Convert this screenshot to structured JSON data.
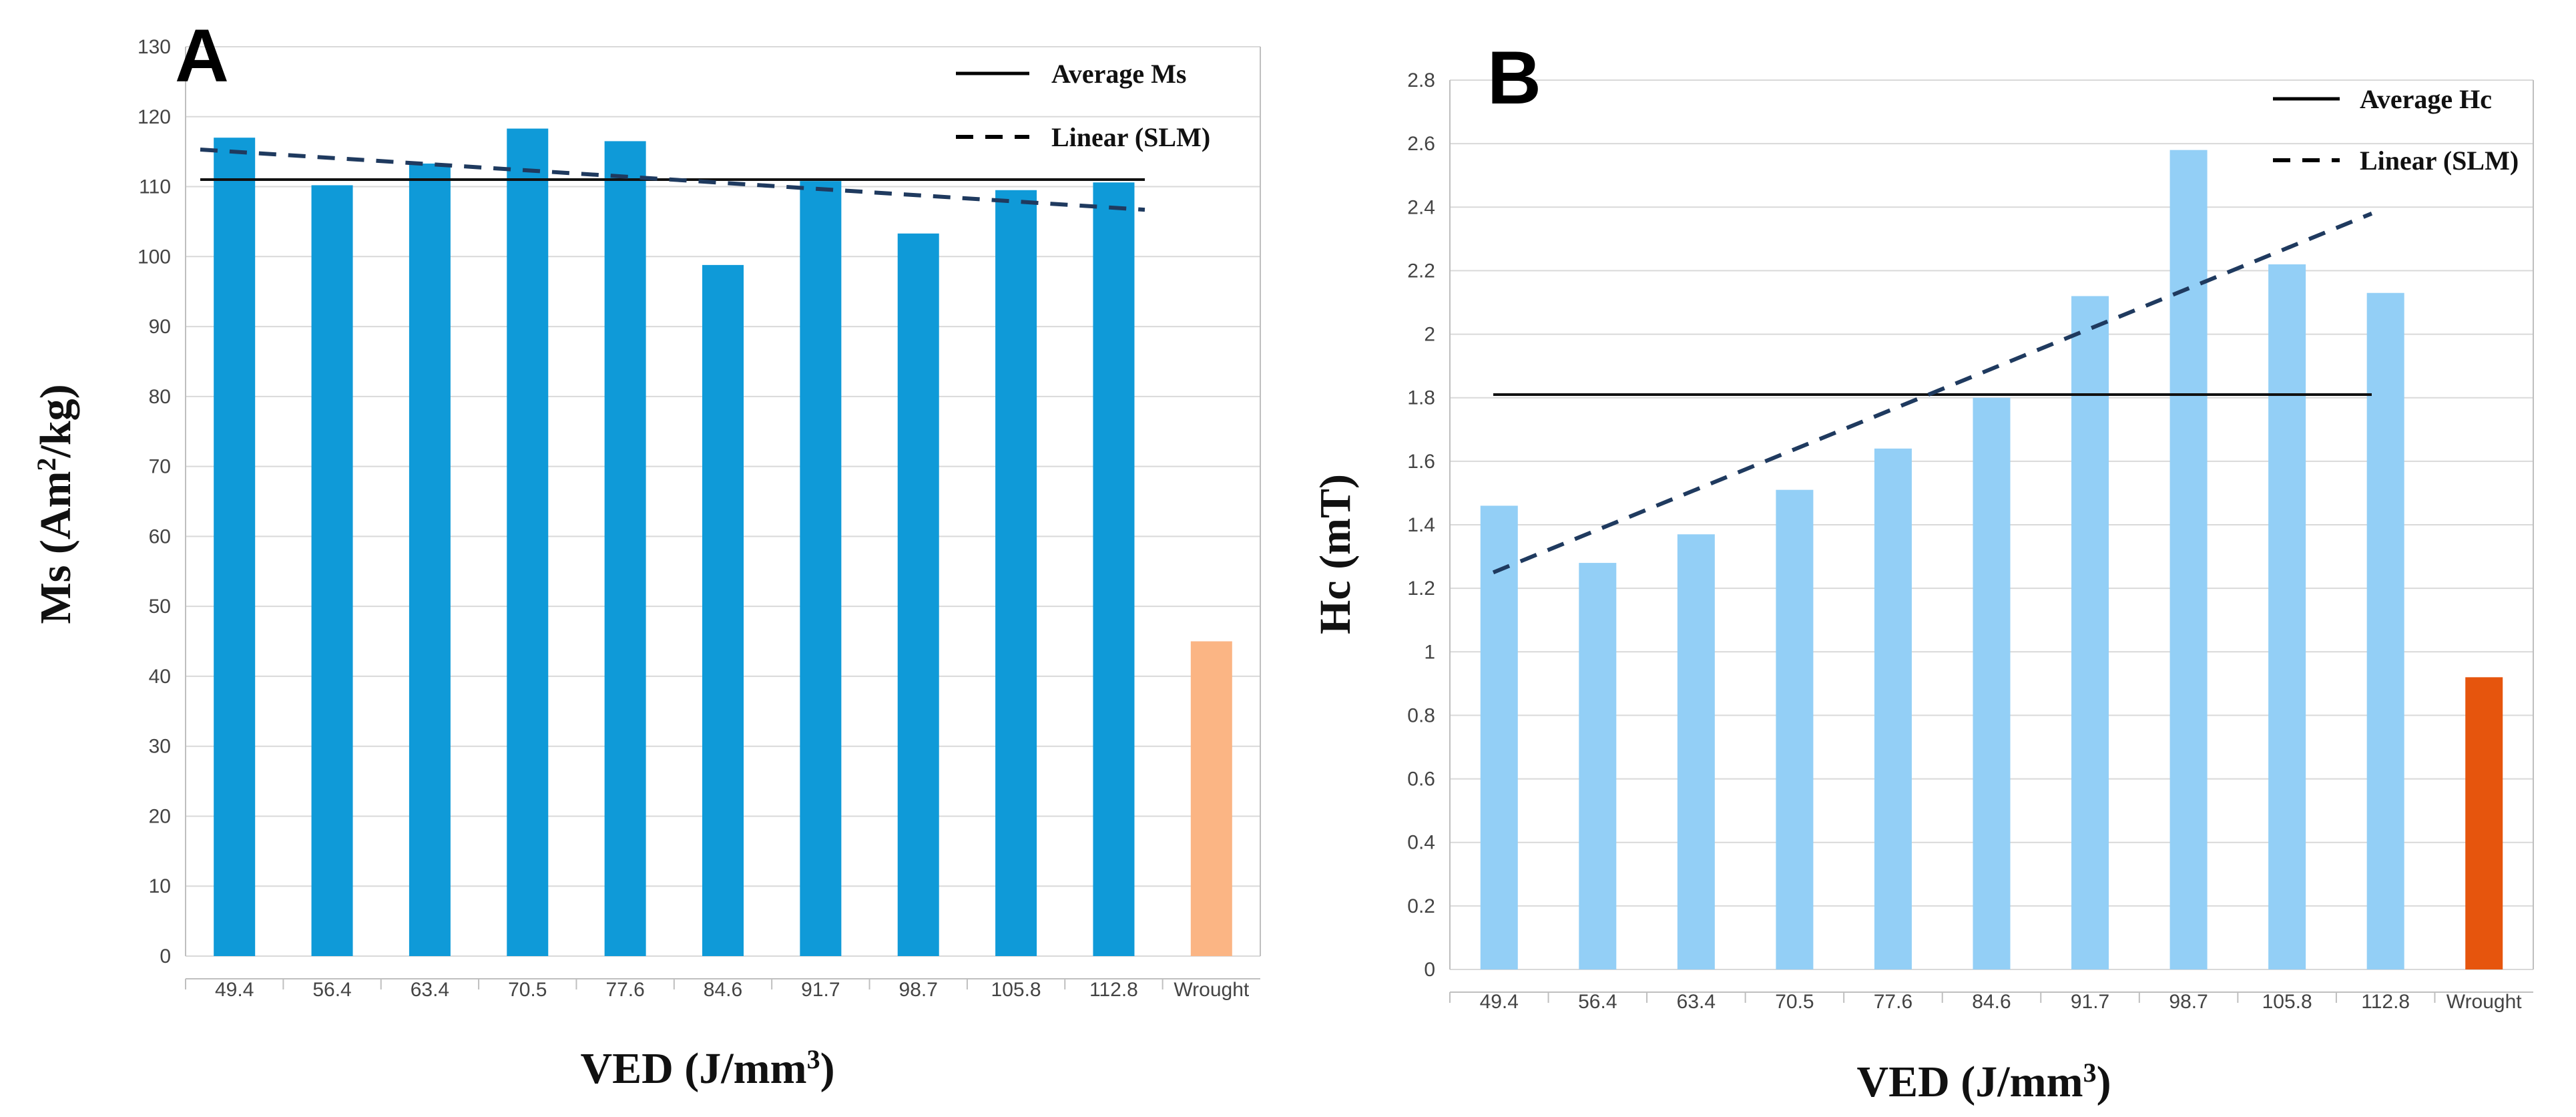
{
  "chart_data": [
    {
      "type": "bar",
      "panel_label": "A",
      "title": "",
      "xlabel": "VED (J/mm",
      "xlabel_sup": "3",
      "xlabel_end": ")",
      "ylabel_pre": "Ms (Am",
      "ylabel_sup": "2",
      "ylabel_post": "/kg)",
      "categories": [
        "49.4",
        "56.4",
        "63.4",
        "70.5",
        "77.6",
        "84.6",
        "91.7",
        "98.7",
        "105.8",
        "112.8",
        "Wrought"
      ],
      "values": [
        117,
        110.2,
        113.3,
        118.3,
        116.5,
        98.8,
        110.8,
        103.3,
        109.5,
        110.6,
        45
      ],
      "bar_colors": [
        "#0f9ad8",
        "#0f9ad8",
        "#0f9ad8",
        "#0f9ad8",
        "#0f9ad8",
        "#0f9ad8",
        "#0f9ad8",
        "#0f9ad8",
        "#0f9ad8",
        "#0f9ad8",
        "#fbb584"
      ],
      "ylim": [
        0,
        130
      ],
      "yticks": [
        0,
        10,
        20,
        30,
        40,
        50,
        60,
        70,
        80,
        90,
        100,
        110,
        120,
        130
      ],
      "grid": true,
      "average": 111,
      "trend": [
        115.3,
        106.7
      ],
      "legend": [
        "Average Ms",
        "Linear (SLM)"
      ],
      "legend_position": "top-right"
    },
    {
      "type": "bar",
      "panel_label": "B",
      "title": "",
      "xlabel": "VED (J/mm",
      "xlabel_sup": "3",
      "xlabel_end": ")",
      "ylabel_pre": "Hc (mT)",
      "ylabel_sup": "",
      "ylabel_post": "",
      "categories": [
        "49.4",
        "56.4",
        "63.4",
        "70.5",
        "77.6",
        "84.6",
        "91.7",
        "98.7",
        "105.8",
        "112.8",
        "Wrought"
      ],
      "values": [
        1.46,
        1.28,
        1.37,
        1.51,
        1.64,
        1.8,
        2.12,
        2.58,
        2.22,
        2.13,
        0.92
      ],
      "bar_colors": [
        "#93cff6",
        "#93cff6",
        "#93cff6",
        "#93cff6",
        "#93cff6",
        "#93cff6",
        "#93cff6",
        "#93cff6",
        "#93cff6",
        "#93cff6",
        "#e6550d"
      ],
      "ylim": [
        0,
        2.8
      ],
      "yticks": [
        "0",
        "0.2",
        "0.4",
        "0.6",
        "0.8",
        "1",
        "1.2",
        "1.4",
        "1.6",
        "1.8",
        "2",
        "2.2",
        "2.4",
        "2.6",
        "2.8"
      ],
      "grid": true,
      "average": 1.81,
      "trend": [
        1.25,
        2.38
      ],
      "legend": [
        "Average Hc",
        "Linear (SLM)"
      ],
      "legend_position": "top-right"
    }
  ]
}
